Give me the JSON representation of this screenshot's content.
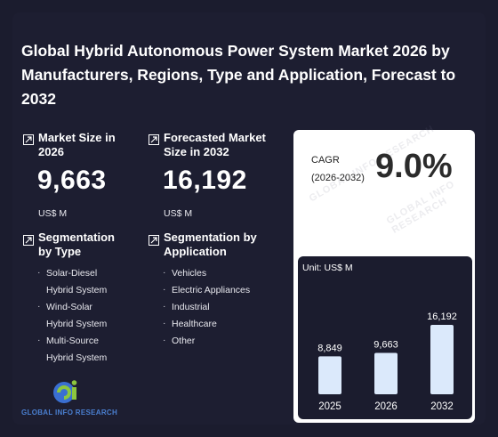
{
  "title": "Global Hybrid Autonomous Power System Market 2026 by Manufacturers, Regions, Type and Application, Forecast to 2032",
  "market_size": {
    "label": "Market Size in 2026",
    "value": "9,663",
    "unit": "US$ M"
  },
  "forecast_size": {
    "label": "Forecasted Market Size in 2032",
    "value": "16,192",
    "unit": "US$ M"
  },
  "segmentation_type": {
    "label": "Segmentation by Type",
    "items": [
      "Solar-Diesel",
      "Hybrid System",
      "Wind-Solar",
      "Hybrid System",
      "Multi-Source",
      "Hybrid System"
    ]
  },
  "segmentation_application": {
    "label": "Segmentation by Application",
    "items": [
      "Vehicles",
      "Electric Appliances",
      "Industrial",
      "Healthcare",
      "Other"
    ]
  },
  "cagr": {
    "label": "CAGR",
    "period": "(2026-2032)",
    "value": "9.0%"
  },
  "watermark": "GLOBAL INFO RESEARCH",
  "logo": {
    "mark": "Gi",
    "text": "GLOBAL INFO RESEARCH"
  },
  "colors": {
    "background": "#1b1c2e",
    "bar": "#dbe9fb",
    "card": "#ffffff"
  },
  "chart_data": {
    "type": "bar",
    "unit_label": "Unit: US$ M",
    "categories": [
      "2025",
      "2026",
      "2032"
    ],
    "values": [
      8849,
      9663,
      16192
    ],
    "value_labels": [
      "8,849",
      "9,663",
      "16,192"
    ],
    "ylim": [
      0,
      16192
    ],
    "grid": false
  }
}
